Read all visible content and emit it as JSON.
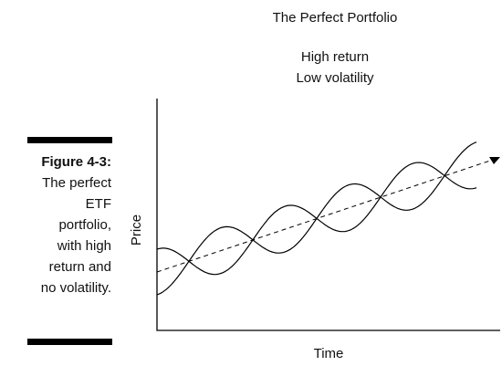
{
  "figure": {
    "label": "Figure 4-3:",
    "caption": [
      "The perfect",
      "ETF",
      "portfolio,",
      "with high",
      "return and",
      "no volatility."
    ]
  },
  "diagram": {
    "title": "The Perfect Portfolio",
    "subtitle": [
      "High return",
      "Low volatility"
    ],
    "y_axis": "Price",
    "x_axis": "Time"
  }
}
